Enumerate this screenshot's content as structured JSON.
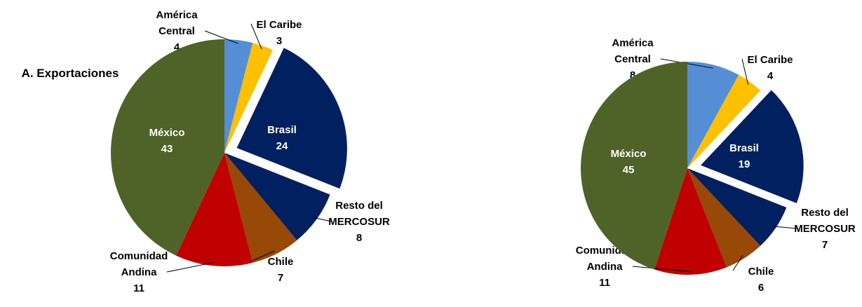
{
  "chart_data": [
    {
      "type": "pie",
      "title": "A. Exportaciones",
      "categories": [
        "América\nCentral",
        "El Caribe",
        "Brasil",
        "Resto del\nMERCOSUR",
        "Chile",
        "Comunidad\nAndina",
        "México"
      ],
      "values": [
        4,
        3,
        24,
        8,
        7,
        11,
        43
      ],
      "colors": [
        "#558ed5",
        "#ffc000",
        "#002060",
        "#002060",
        "#984807",
        "#c00000",
        "#4f6228"
      ],
      "explode": [
        0,
        0,
        1,
        0,
        0,
        0,
        0
      ]
    },
    {
      "type": "pie",
      "categories": [
        "América\nCentral",
        "El Caribe",
        "Brasil",
        "Resto del\nMERCOSUR",
        "Chile",
        "Comunidad\nAndina",
        "México"
      ],
      "values": [
        8,
        4,
        19,
        7,
        6,
        11,
        45
      ],
      "colors": [
        "#558ed5",
        "#ffc000",
        "#002060",
        "#002060",
        "#984807",
        "#c00000",
        "#4f6228"
      ],
      "explode": [
        0,
        0,
        1,
        0,
        0,
        0,
        0
      ]
    }
  ]
}
